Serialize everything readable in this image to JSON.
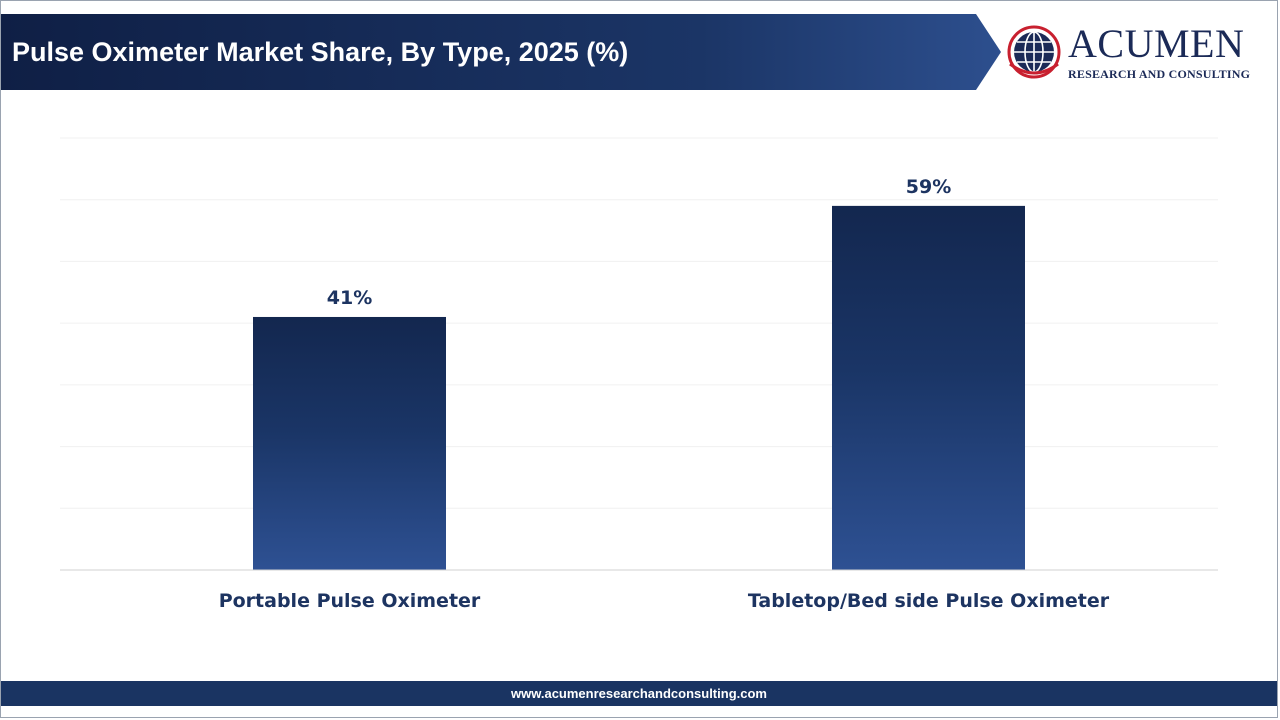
{
  "header": {
    "title": "Pulse Oximeter Market Share, By Type, 2025 (%)"
  },
  "logo": {
    "name": "ACUMEN",
    "subtitle": "RESEARCH AND CONSULTING"
  },
  "footer": {
    "url": "www.acumenresearchandconsulting.com"
  },
  "colors": {
    "header_dark": "#0f1f45",
    "header_light": "#2d4f8e",
    "bar_top": "#13274f",
    "bar_bottom": "#2e5193",
    "footer": "#1a3462",
    "text": "#1d3461"
  },
  "chart_data": {
    "type": "bar",
    "categories": [
      "Portable Pulse Oximeter",
      "Tabletop/Bed side Pulse Oximeter"
    ],
    "values": [
      41,
      59
    ],
    "value_labels": [
      "41%",
      "59%"
    ],
    "ylim": [
      0,
      70
    ],
    "grid": true,
    "legend": "none"
  }
}
